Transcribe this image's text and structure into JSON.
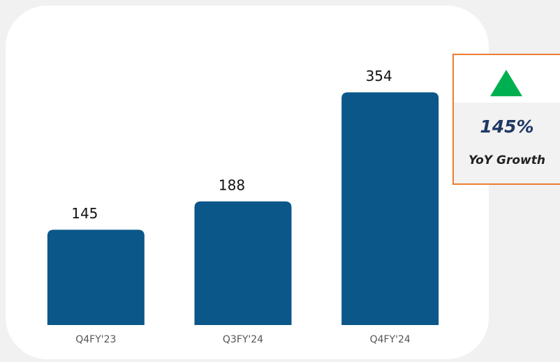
{
  "chart_data": {
    "type": "bar",
    "categories": [
      "Q4FY'23",
      "Q3FY'24",
      "Q4FY'24"
    ],
    "values": [
      145,
      188,
      354
    ],
    "color": "#0b5789",
    "ylim": [
      0,
      400
    ],
    "annotations": [
      "145%",
      "YoY Growth"
    ],
    "annotation_arrow_color": "#00b050",
    "annotation_border_color": "#ed7d31"
  }
}
